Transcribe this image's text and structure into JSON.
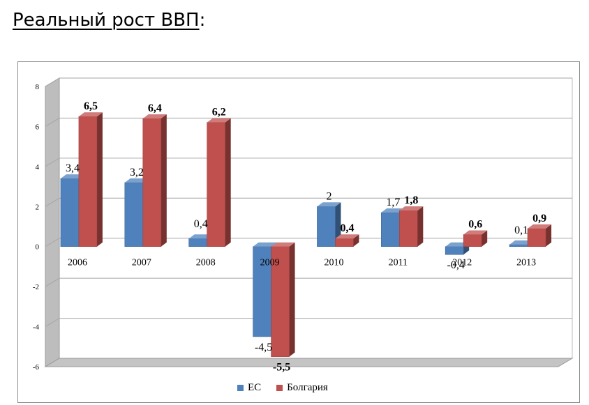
{
  "page": {
    "title": "Реальный рост ВВП",
    "title_suffix": ":"
  },
  "chart_data": {
    "type": "bar",
    "categories": [
      "2006",
      "2007",
      "2008",
      "2009",
      "2010",
      "2011",
      "2012",
      "2013"
    ],
    "series": [
      {
        "name": "ЕС",
        "values": [
          3.4,
          3.2,
          0.4,
          -4.5,
          2,
          1.7,
          -0.4,
          0.1
        ],
        "labels": [
          "3,4",
          "3,2",
          "0,4",
          "-4,5",
          "2",
          "1,7",
          "-0,4",
          "0,1"
        ],
        "color": "#4f81bd"
      },
      {
        "name": "Болгария",
        "values": [
          6.5,
          6.4,
          6.2,
          -5.5,
          0.4,
          1.8,
          0.6,
          0.9
        ],
        "labels": [
          "6,5",
          "6,4",
          "6,2",
          "-5,5",
          "0,4",
          "1,8",
          "0,6",
          "0,9"
        ],
        "color": "#c0504d"
      }
    ],
    "title": "",
    "xlabel": "",
    "ylabel": "",
    "ylim": [
      -6,
      8
    ],
    "yticks": [
      "8",
      "6",
      "4",
      "2",
      "0",
      "-2",
      "-4",
      "-6"
    ],
    "grid": true,
    "three_d": true,
    "legend_position": "bottom"
  }
}
